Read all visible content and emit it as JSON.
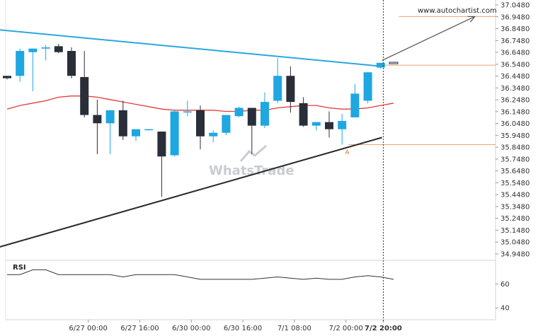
{
  "chart_data": {
    "type": "candlestick",
    "y_axis": {
      "range": [
        34.93,
        37.06
      ],
      "ticks": [
        "37.0480",
        "36.9480",
        "36.8480",
        "36.7480",
        "36.6480",
        "36.5480",
        "36.4480",
        "36.3480",
        "36.2480",
        "36.1480",
        "36.0480",
        "35.9480",
        "35.8480",
        "35.7480",
        "35.6480",
        "35.5480",
        "35.4480",
        "35.3480",
        "35.2480",
        "35.1480",
        "35.0480",
        "34.9480"
      ]
    },
    "x_axis": {
      "ticks": [
        {
          "label": "6/27 00:00",
          "i": 6.3,
          "bold": false
        },
        {
          "label": "6/27 16:00",
          "i": 10.3,
          "bold": false
        },
        {
          "label": "6/30 00:00",
          "i": 14.3,
          "bold": false
        },
        {
          "label": "6/30 16:00",
          "i": 18.3,
          "bold": false
        },
        {
          "label": "7/1 08:00",
          "i": 22.3,
          "bold": false
        },
        {
          "label": "7/2 00:00",
          "i": 26.3,
          "bold": false
        },
        {
          "label": "7/2 20:00",
          "i": 29.2,
          "bold": true
        }
      ]
    },
    "candles": [
      {
        "o": 36.45,
        "h": 36.45,
        "l": 36.42,
        "c": 36.43
      },
      {
        "o": 36.45,
        "h": 36.68,
        "l": 36.4,
        "c": 36.66
      },
      {
        "o": 36.65,
        "h": 36.68,
        "l": 36.32,
        "c": 36.68
      },
      {
        "o": 36.68,
        "h": 36.71,
        "l": 36.58,
        "c": 36.69
      },
      {
        "o": 36.7,
        "h": 36.72,
        "l": 36.64,
        "c": 36.65
      },
      {
        "o": 36.66,
        "h": 36.69,
        "l": 36.43,
        "c": 36.45
      },
      {
        "o": 36.44,
        "h": 36.66,
        "l": 36.1,
        "c": 36.12
      },
      {
        "o": 36.12,
        "h": 36.25,
        "l": 35.79,
        "c": 36.05
      },
      {
        "o": 36.05,
        "h": 36.16,
        "l": 35.79,
        "c": 36.16
      },
      {
        "o": 36.16,
        "h": 36.24,
        "l": 35.91,
        "c": 35.94
      },
      {
        "o": 35.94,
        "h": 36.0,
        "l": 35.9,
        "c": 36.0
      },
      {
        "o": 36.0,
        "h": 36.0,
        "l": 35.99,
        "c": 36.0
      },
      {
        "o": 35.98,
        "h": 35.98,
        "l": 35.43,
        "c": 35.77
      },
      {
        "o": 35.78,
        "h": 36.16,
        "l": 35.77,
        "c": 36.15
      },
      {
        "o": 36.15,
        "h": 36.24,
        "l": 36.11,
        "c": 36.15
      },
      {
        "o": 36.16,
        "h": 36.2,
        "l": 35.83,
        "c": 35.94
      },
      {
        "o": 35.94,
        "h": 35.99,
        "l": 35.89,
        "c": 35.97
      },
      {
        "o": 35.97,
        "h": 36.12,
        "l": 35.95,
        "c": 36.12
      },
      {
        "o": 36.11,
        "h": 36.19,
        "l": 36.1,
        "c": 36.18
      },
      {
        "o": 36.18,
        "h": 36.18,
        "l": 35.79,
        "c": 36.03
      },
      {
        "o": 36.03,
        "h": 36.31,
        "l": 36.01,
        "c": 36.23
      },
      {
        "o": 36.24,
        "h": 36.6,
        "l": 36.22,
        "c": 36.45
      },
      {
        "o": 36.45,
        "h": 36.53,
        "l": 36.14,
        "c": 36.23
      },
      {
        "o": 36.22,
        "h": 36.27,
        "l": 36.02,
        "c": 36.03
      },
      {
        "o": 36.03,
        "h": 36.06,
        "l": 35.99,
        "c": 36.06
      },
      {
        "o": 36.06,
        "h": 36.15,
        "l": 35.93,
        "c": 36.0
      },
      {
        "o": 36.0,
        "h": 36.13,
        "l": 35.87,
        "c": 36.07
      },
      {
        "o": 36.1,
        "h": 36.38,
        "l": 36.1,
        "c": 36.3
      },
      {
        "o": 36.24,
        "h": 36.48,
        "l": 36.22,
        "c": 36.48
      },
      {
        "o": 36.52,
        "h": 36.56,
        "l": 36.51,
        "c": 36.56
      },
      {
        "o": 36.56,
        "h": 36.57,
        "l": 36.55,
        "c": 36.56
      }
    ],
    "moving_average": [
      36.17,
      36.2,
      36.22,
      36.24,
      36.27,
      36.28,
      36.28,
      36.27,
      36.25,
      36.23,
      36.21,
      36.19,
      36.17,
      36.16,
      36.16,
      36.16,
      36.16,
      36.15,
      36.15,
      36.16,
      36.16,
      36.18,
      36.19,
      36.2,
      36.2,
      36.18,
      36.17,
      36.17,
      36.18,
      36.2,
      36.22
    ],
    "resistance_line": {
      "i1": -0.8,
      "y1": 36.84,
      "i2": 29.1,
      "y2": 36.53
    },
    "support_line": {
      "i1": -0.8,
      "y1": 35.0,
      "i2": 29.1,
      "y2": 35.93
    },
    "forecast_arrow": {
      "i1": 29.1,
      "y1": 36.58,
      "i2": 36.3,
      "y2": 36.95
    },
    "levels": [
      {
        "value": 36.95,
        "i_start": 30.4
      },
      {
        "value": 36.54,
        "i_start": 29.1
      },
      {
        "value": 35.87,
        "i_start": 26.5
      }
    ],
    "current_index": 29.2,
    "point_label": {
      "text": "A",
      "i": 26.4,
      "y": 35.85
    },
    "rsi": {
      "label": "RSI",
      "range": [
        30,
        80
      ],
      "ticks": [
        "60",
        "40"
      ],
      "values": [
        68,
        68,
        72,
        72,
        68,
        68,
        68,
        68,
        68,
        66,
        68,
        68,
        68,
        68,
        66,
        64,
        64,
        64,
        64,
        64,
        65,
        66,
        65,
        64,
        65,
        64,
        64,
        66,
        67,
        66,
        64
      ]
    },
    "watermark": "WhatsTrade",
    "source": "www.autochartist.com",
    "colors": {
      "up": "#1ea7e1",
      "down": "#2a2e39",
      "resistance": "#2aa7e0",
      "support": "#2a2a2a",
      "ma": "#e23b3b",
      "level": "#f0a070",
      "arrow": "#555555"
    }
  }
}
